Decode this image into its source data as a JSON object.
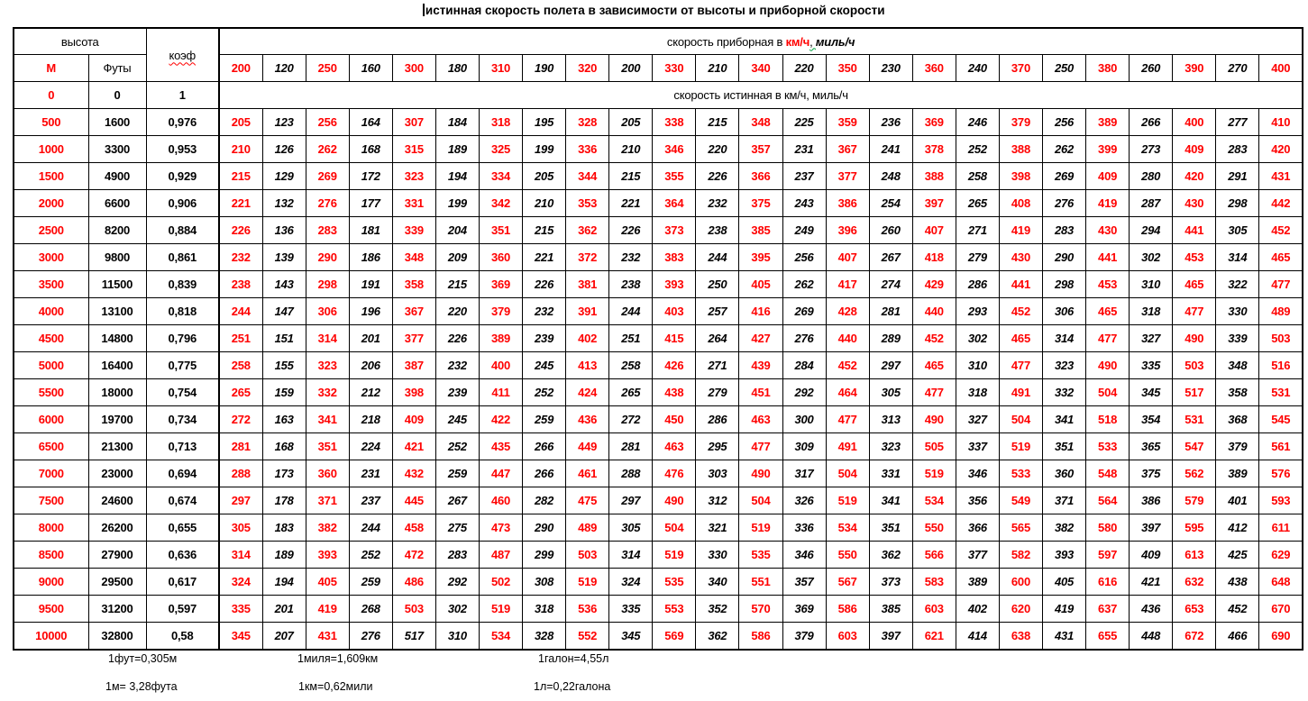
{
  "title": "истинная скорость полета в зависимости от высоты и приборной скорости",
  "colors": {
    "accent_red": "#ff0000",
    "ink_black": "#000000",
    "spellcheck_wave_red": "#ff0000",
    "grammar_wave_green": "#00a33d"
  },
  "table": {
    "header": {
      "altitude": "высота",
      "m": "М",
      "feet": "Футы",
      "coef": "коэф",
      "indicated": {
        "prefix": "скорость приборная в ",
        "kmh": "км/ч",
        "sep": ", ",
        "mph": "миль/ч"
      },
      "speeds": [
        200,
        120,
        250,
        160,
        300,
        180,
        310,
        190,
        320,
        200,
        330,
        210,
        340,
        220,
        350,
        230,
        360,
        240,
        370,
        250,
        380,
        260,
        390,
        270,
        400
      ]
    },
    "zero_row": {
      "m": "0",
      "feet": "0",
      "coef": "1",
      "true_speed_label": "скорость истинная в км/ч, миль/ч"
    },
    "rows": [
      {
        "m": "500",
        "feet": "1600",
        "coef": "0,976",
        "v": [
          205,
          123,
          256,
          164,
          307,
          184,
          318,
          195,
          328,
          205,
          338,
          215,
          348,
          225,
          359,
          236,
          369,
          246,
          379,
          256,
          389,
          266,
          400,
          277,
          410
        ]
      },
      {
        "m": "1000",
        "feet": "3300",
        "coef": "0,953",
        "v": [
          210,
          126,
          262,
          168,
          315,
          189,
          325,
          199,
          336,
          210,
          346,
          220,
          357,
          231,
          367,
          241,
          378,
          252,
          388,
          262,
          399,
          273,
          409,
          283,
          420
        ]
      },
      {
        "m": "1500",
        "feet": "4900",
        "coef": "0,929",
        "v": [
          215,
          129,
          269,
          172,
          323,
          194,
          334,
          205,
          344,
          215,
          355,
          226,
          366,
          237,
          377,
          248,
          388,
          258,
          398,
          269,
          409,
          280,
          420,
          291,
          431
        ]
      },
      {
        "m": "2000",
        "feet": "6600",
        "coef": "0,906",
        "v": [
          221,
          132,
          276,
          177,
          331,
          199,
          342,
          210,
          353,
          221,
          364,
          232,
          375,
          243,
          386,
          254,
          397,
          265,
          408,
          276,
          419,
          287,
          430,
          298,
          442
        ]
      },
      {
        "m": "2500",
        "feet": "8200",
        "coef": "0,884",
        "v": [
          226,
          136,
          283,
          181,
          339,
          204,
          351,
          215,
          362,
          226,
          373,
          238,
          385,
          249,
          396,
          260,
          407,
          271,
          419,
          283,
          430,
          294,
          441,
          305,
          452
        ]
      },
      {
        "m": "3000",
        "feet": "9800",
        "coef": "0,861",
        "v": [
          232,
          139,
          290,
          186,
          348,
          209,
          360,
          221,
          372,
          232,
          383,
          244,
          395,
          256,
          407,
          267,
          418,
          279,
          430,
          290,
          441,
          302,
          453,
          314,
          465
        ]
      },
      {
        "m": "3500",
        "feet": "11500",
        "coef": "0,839",
        "v": [
          238,
          143,
          298,
          191,
          358,
          215,
          369,
          226,
          381,
          238,
          393,
          250,
          405,
          262,
          417,
          274,
          429,
          286,
          441,
          298,
          453,
          310,
          465,
          322,
          477
        ]
      },
      {
        "m": "4000",
        "feet": "13100",
        "coef": "0,818",
        "v": [
          244,
          147,
          306,
          196,
          367,
          220,
          379,
          232,
          391,
          244,
          403,
          257,
          416,
          269,
          428,
          281,
          440,
          293,
          452,
          306,
          465,
          318,
          477,
          330,
          489
        ]
      },
      {
        "m": "4500",
        "feet": "14800",
        "coef": "0,796",
        "v": [
          251,
          151,
          314,
          201,
          377,
          226,
          389,
          239,
          402,
          251,
          415,
          264,
          427,
          276,
          440,
          289,
          452,
          302,
          465,
          314,
          477,
          327,
          490,
          339,
          503
        ]
      },
      {
        "m": "5000",
        "feet": "16400",
        "coef": "0,775",
        "v": [
          258,
          155,
          323,
          206,
          387,
          232,
          400,
          245,
          413,
          258,
          426,
          271,
          439,
          284,
          452,
          297,
          465,
          310,
          477,
          323,
          490,
          335,
          503,
          348,
          516
        ]
      },
      {
        "m": "5500",
        "feet": "18000",
        "coef": "0,754",
        "v": [
          265,
          159,
          332,
          212,
          398,
          239,
          411,
          252,
          424,
          265,
          438,
          279,
          451,
          292,
          464,
          305,
          477,
          318,
          491,
          332,
          504,
          345,
          517,
          358,
          531
        ]
      },
      {
        "m": "6000",
        "feet": "19700",
        "coef": "0,734",
        "v": [
          272,
          163,
          341,
          218,
          409,
          245,
          422,
          259,
          436,
          272,
          450,
          286,
          463,
          300,
          477,
          313,
          490,
          327,
          504,
          341,
          518,
          354,
          531,
          368,
          545
        ]
      },
      {
        "m": "6500",
        "feet": "21300",
        "coef": "0,713",
        "v": [
          281,
          168,
          351,
          224,
          421,
          252,
          435,
          266,
          449,
          281,
          463,
          295,
          477,
          309,
          491,
          323,
          505,
          337,
          519,
          351,
          533,
          365,
          547,
          379,
          561
        ]
      },
      {
        "m": "7000",
        "feet": "23000",
        "coef": "0,694",
        "v": [
          288,
          173,
          360,
          231,
          432,
          259,
          447,
          266,
          461,
          288,
          476,
          303,
          490,
          317,
          504,
          331,
          519,
          346,
          533,
          360,
          548,
          375,
          562,
          389,
          576
        ]
      },
      {
        "m": "7500",
        "feet": "24600",
        "coef": "0,674",
        "v": [
          297,
          178,
          371,
          237,
          445,
          267,
          460,
          282,
          475,
          297,
          490,
          312,
          504,
          326,
          519,
          341,
          534,
          356,
          549,
          371,
          564,
          386,
          579,
          401,
          593
        ]
      },
      {
        "m": "8000",
        "feet": "26200",
        "coef": "0,655",
        "v": [
          305,
          183,
          382,
          244,
          458,
          275,
          473,
          290,
          489,
          305,
          504,
          321,
          519,
          336,
          534,
          351,
          550,
          366,
          565,
          382,
          580,
          397,
          595,
          412,
          611
        ]
      },
      {
        "m": "8500",
        "feet": "27900",
        "coef": "0,636",
        "v": [
          314,
          189,
          393,
          252,
          472,
          283,
          487,
          299,
          503,
          314,
          519,
          330,
          535,
          346,
          550,
          362,
          566,
          377,
          582,
          393,
          597,
          409,
          613,
          425,
          629
        ]
      },
      {
        "m": "9000",
        "feet": "29500",
        "coef": "0,617",
        "v": [
          324,
          194,
          405,
          259,
          486,
          292,
          502,
          308,
          519,
          324,
          535,
          340,
          551,
          357,
          567,
          373,
          583,
          389,
          600,
          405,
          616,
          421,
          632,
          438,
          648
        ]
      },
      {
        "m": "9500",
        "feet": "31200",
        "coef": "0,597",
        "v": [
          335,
          201,
          419,
          268,
          503,
          302,
          519,
          318,
          536,
          335,
          553,
          352,
          570,
          369,
          586,
          385,
          603,
          402,
          620,
          419,
          637,
          436,
          653,
          452,
          670
        ]
      },
      {
        "m": "10000",
        "feet": "32800",
        "coef": "0,58",
        "v": [
          345,
          207,
          431,
          276,
          517,
          310,
          534,
          328,
          552,
          345,
          569,
          362,
          586,
          379,
          603,
          397,
          621,
          414,
          638,
          431,
          655,
          448,
          672,
          466,
          690
        ]
      }
    ],
    "black_exception_cells": [
      {
        "row_index": 19,
        "col_index": 4
      }
    ]
  },
  "footnotes": [
    "1фут=0,305м",
    "1миля=1,609км",
    "1галон=4,55л",
    "1м= 3,28фута",
    "1км=0,62мили",
    "1л=0,22галона"
  ]
}
